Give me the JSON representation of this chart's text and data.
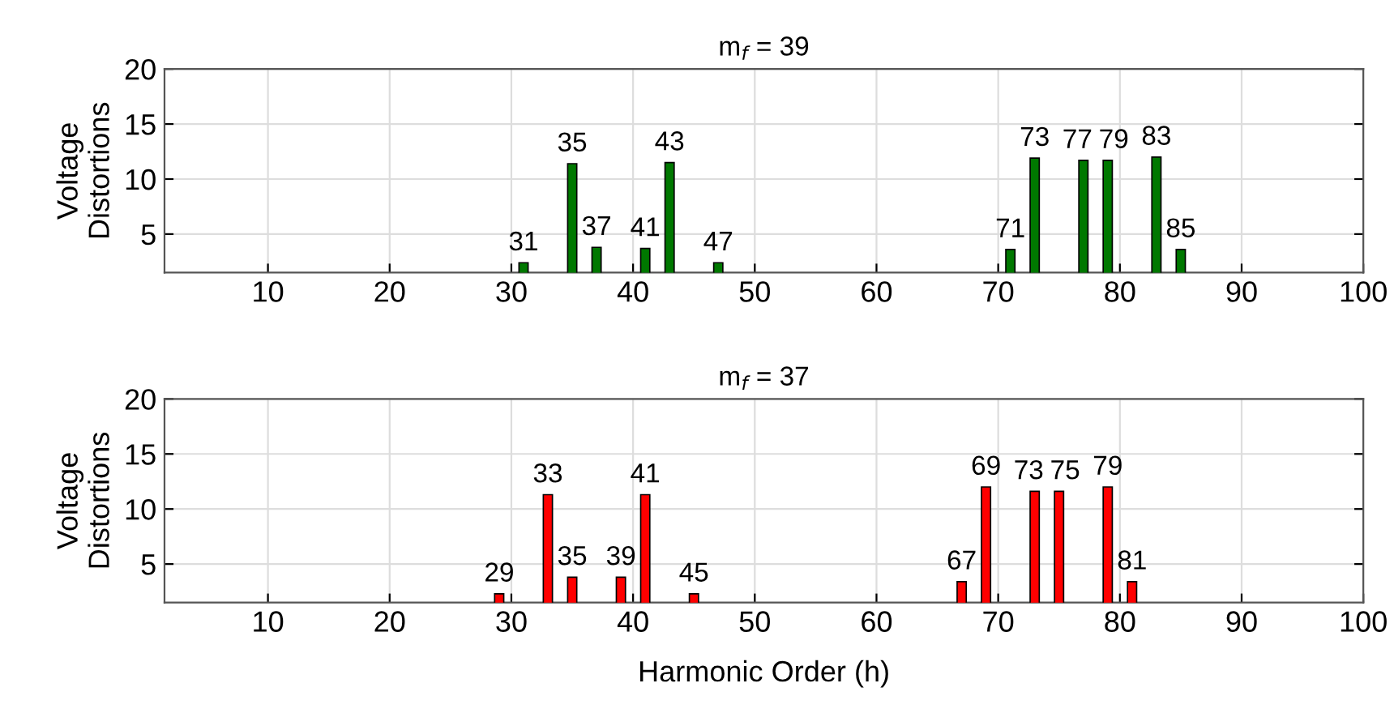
{
  "chart_data": [
    {
      "type": "bar",
      "title": "m$_{f}$ = 39",
      "ylabel": "Voltage\nDistortions",
      "x": [
        31,
        35,
        37,
        41,
        43,
        47,
        71,
        73,
        77,
        79,
        83,
        85
      ],
      "values": [
        2.4,
        11.4,
        3.8,
        3.7,
        11.5,
        2.4,
        3.6,
        11.9,
        11.7,
        11.7,
        12.0,
        3.6
      ],
      "color": "#007800",
      "xlim": [
        1.5,
        100
      ],
      "xticks": [
        10,
        20,
        30,
        40,
        50,
        60,
        70,
        80,
        90,
        100
      ],
      "ylim": [
        1.5,
        20
      ],
      "yticks": [
        5,
        10,
        15,
        20
      ],
      "grid": true,
      "annotations": [
        {
          "text": "31",
          "x": 31,
          "y": 2.4
        },
        {
          "text": "35",
          "x": 35,
          "y": 11.4
        },
        {
          "text": "37",
          "x": 37,
          "y": 3.8
        },
        {
          "text": "41",
          "x": 41,
          "y": 3.7
        },
        {
          "text": "43",
          "x": 43,
          "y": 11.5
        },
        {
          "text": "47",
          "x": 47,
          "y": 2.4
        },
        {
          "text": "71",
          "x": 71,
          "y": 3.6
        },
        {
          "text": "73",
          "x": 73,
          "y": 11.9
        },
        {
          "text": "77",
          "x": 77,
          "y": 11.7
        },
        {
          "text": "79",
          "x": 79,
          "y": 11.7
        },
        {
          "text": "83",
          "x": 83,
          "y": 12.0
        },
        {
          "text": "85",
          "x": 85,
          "y": 3.6
        }
      ]
    },
    {
      "type": "bar",
      "title": "m$_{f}$ = 37",
      "ylabel": "Voltage\nDistortions",
      "xlabel": "Harmonic Order (h)",
      "x": [
        29,
        33,
        35,
        39,
        41,
        45,
        67,
        69,
        73,
        75,
        79,
        81
      ],
      "values": [
        2.3,
        11.3,
        3.8,
        3.8,
        11.3,
        2.3,
        3.4,
        12.0,
        11.6,
        11.6,
        12.0,
        3.4
      ],
      "color": "#ff0000",
      "xlim": [
        1.5,
        100
      ],
      "xticks": [
        10,
        20,
        30,
        40,
        50,
        60,
        70,
        80,
        90,
        100
      ],
      "ylim": [
        1.5,
        20
      ],
      "yticks": [
        5,
        10,
        15,
        20
      ],
      "grid": true,
      "annotations": [
        {
          "text": "29",
          "x": 29,
          "y": 2.3
        },
        {
          "text": "33",
          "x": 33,
          "y": 11.3
        },
        {
          "text": "35",
          "x": 35,
          "y": 3.8
        },
        {
          "text": "39",
          "x": 39,
          "y": 3.8
        },
        {
          "text": "41",
          "x": 41,
          "y": 11.3
        },
        {
          "text": "45",
          "x": 45,
          "y": 2.3
        },
        {
          "text": "67",
          "x": 67,
          "y": 3.4
        },
        {
          "text": "69",
          "x": 69,
          "y": 12.0
        },
        {
          "text": "73",
          "x": 73,
          "y": 11.6
        },
        {
          "text": "75",
          "x": 75,
          "y": 11.6
        },
        {
          "text": "79",
          "x": 79,
          "y": 12.0
        },
        {
          "text": "81",
          "x": 81,
          "y": 3.4
        }
      ]
    }
  ]
}
